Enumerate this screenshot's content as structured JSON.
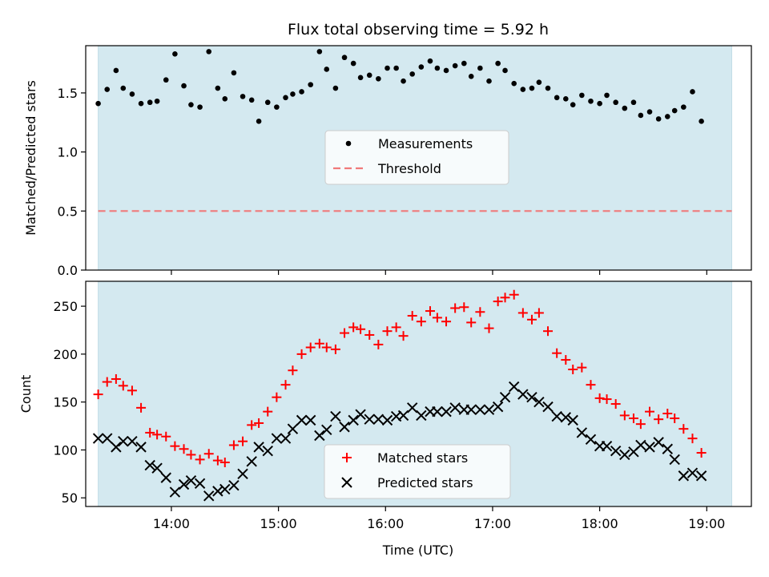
{
  "figure": {
    "title": "Flux total observing time = 5.92 h",
    "xlabel": "Time (UTC)"
  },
  "chart_data": [
    {
      "panel": "top",
      "type": "scatter",
      "ylabel": "Matched/Predicted stars",
      "xlim": [
        "13:12",
        "19:25"
      ],
      "ylim": [
        0,
        1.9
      ],
      "yticks": [
        0.0,
        0.5,
        1.0,
        1.5
      ],
      "ytick_labels": [
        "0.0",
        "0.5",
        "1.0",
        "1.5"
      ],
      "xticks": [
        "14:00",
        "15:00",
        "16:00",
        "17:00",
        "18:00",
        "19:00"
      ],
      "x_tick_labels_visible": false,
      "shaded_span": {
        "from": "13:19",
        "to": "19:14",
        "color": "#d4e9f0"
      },
      "grid": false,
      "legend": {
        "placement": "center",
        "entries": [
          "Measurements",
          "Threshold"
        ]
      },
      "threshold": {
        "name": "Threshold",
        "value": 0.5,
        "color": "#f07a7a",
        "style": "dashed"
      },
      "series": [
        {
          "name": "Measurements",
          "color": "#000000",
          "marker": "dot",
          "points": [
            [
              "13:19",
              1.41
            ],
            [
              "13:24",
              1.53
            ],
            [
              "13:29",
              1.69
            ],
            [
              "13:33",
              1.54
            ],
            [
              "13:38",
              1.49
            ],
            [
              "13:43",
              1.41
            ],
            [
              "13:48",
              1.42
            ],
            [
              "13:52",
              1.43
            ],
            [
              "13:57",
              1.61
            ],
            [
              "14:02",
              1.83
            ],
            [
              "14:07",
              1.56
            ],
            [
              "14:11",
              1.4
            ],
            [
              "14:16",
              1.38
            ],
            [
              "14:21",
              1.85
            ],
            [
              "14:26",
              1.54
            ],
            [
              "14:30",
              1.45
            ],
            [
              "14:35",
              1.67
            ],
            [
              "14:40",
              1.47
            ],
            [
              "14:45",
              1.44
            ],
            [
              "14:49",
              1.26
            ],
            [
              "14:54",
              1.42
            ],
            [
              "14:59",
              1.38
            ],
            [
              "15:04",
              1.46
            ],
            [
              "15:08",
              1.49
            ],
            [
              "15:13",
              1.51
            ],
            [
              "15:18",
              1.57
            ],
            [
              "15:23",
              1.85
            ],
            [
              "15:27",
              1.7
            ],
            [
              "15:32",
              1.54
            ],
            [
              "15:37",
              1.8
            ],
            [
              "15:42",
              1.75
            ],
            [
              "15:46",
              1.63
            ],
            [
              "15:51",
              1.65
            ],
            [
              "15:56",
              1.62
            ],
            [
              "16:01",
              1.71
            ],
            [
              "16:06",
              1.71
            ],
            [
              "16:10",
              1.6
            ],
            [
              "16:15",
              1.66
            ],
            [
              "16:20",
              1.72
            ],
            [
              "16:25",
              1.77
            ],
            [
              "16:29",
              1.71
            ],
            [
              "16:34",
              1.69
            ],
            [
              "16:39",
              1.73
            ],
            [
              "16:44",
              1.75
            ],
            [
              "16:48",
              1.64
            ],
            [
              "16:53",
              1.71
            ],
            [
              "16:58",
              1.6
            ],
            [
              "17:03",
              1.75
            ],
            [
              "17:07",
              1.69
            ],
            [
              "17:12",
              1.58
            ],
            [
              "17:17",
              1.53
            ],
            [
              "17:22",
              1.54
            ],
            [
              "17:26",
              1.59
            ],
            [
              "17:31",
              1.54
            ],
            [
              "17:36",
              1.46
            ],
            [
              "17:41",
              1.45
            ],
            [
              "17:45",
              1.4
            ],
            [
              "17:50",
              1.48
            ],
            [
              "17:55",
              1.43
            ],
            [
              "18:00",
              1.41
            ],
            [
              "18:04",
              1.48
            ],
            [
              "18:09",
              1.42
            ],
            [
              "18:14",
              1.37
            ],
            [
              "18:19",
              1.42
            ],
            [
              "18:23",
              1.31
            ],
            [
              "18:28",
              1.34
            ],
            [
              "18:33",
              1.28
            ],
            [
              "18:38",
              1.3
            ],
            [
              "18:42",
              1.35
            ],
            [
              "18:47",
              1.38
            ],
            [
              "18:52",
              1.51
            ],
            [
              "18:57",
              1.26
            ]
          ]
        }
      ]
    },
    {
      "panel": "bottom",
      "type": "scatter",
      "ylabel": "Count",
      "xlabel": "Time (UTC)",
      "xlim": [
        "13:12",
        "19:25"
      ],
      "ylim": [
        41,
        276
      ],
      "yticks": [
        50,
        100,
        150,
        200,
        250
      ],
      "ytick_labels": [
        "50",
        "100",
        "150",
        "200",
        "250"
      ],
      "xticks": [
        "14:00",
        "15:00",
        "16:00",
        "17:00",
        "18:00",
        "19:00"
      ],
      "xtick_labels": [
        "14:00",
        "15:00",
        "16:00",
        "17:00",
        "18:00",
        "19:00"
      ],
      "shaded_span": {
        "from": "13:19",
        "to": "19:14",
        "color": "#d4e9f0"
      },
      "grid": false,
      "legend": {
        "placement": "bottom-center",
        "entries": [
          "Matched stars",
          "Predicted stars"
        ]
      },
      "series": [
        {
          "name": "Matched stars",
          "color": "#ff0000",
          "marker": "plus",
          "points": [
            [
              "13:19",
              158
            ],
            [
              "13:24",
              171
            ],
            [
              "13:29",
              174
            ],
            [
              "13:33",
              167
            ],
            [
              "13:38",
              162
            ],
            [
              "13:43",
              144
            ],
            [
              "13:48",
              118
            ],
            [
              "13:52",
              116
            ],
            [
              "13:57",
              114
            ],
            [
              "14:02",
              104
            ],
            [
              "14:07",
              101
            ],
            [
              "14:11",
              95
            ],
            [
              "14:16",
              90
            ],
            [
              "14:21",
              96
            ],
            [
              "14:26",
              89
            ],
            [
              "14:30",
              87
            ],
            [
              "14:35",
              105
            ],
            [
              "14:40",
              109
            ],
            [
              "14:45",
              126
            ],
            [
              "14:49",
              128
            ],
            [
              "14:54",
              140
            ],
            [
              "14:59",
              155
            ],
            [
              "15:04",
              168
            ],
            [
              "15:08",
              183
            ],
            [
              "15:13",
              200
            ],
            [
              "15:18",
              207
            ],
            [
              "15:23",
              211
            ],
            [
              "15:27",
              207
            ],
            [
              "15:32",
              205
            ],
            [
              "15:37",
              222
            ],
            [
              "15:42",
              228
            ],
            [
              "15:46",
              226
            ],
            [
              "15:51",
              220
            ],
            [
              "15:56",
              210
            ],
            [
              "16:01",
              224
            ],
            [
              "16:06",
              228
            ],
            [
              "16:10",
              219
            ],
            [
              "16:15",
              240
            ],
            [
              "16:20",
              234
            ],
            [
              "16:25",
              245
            ],
            [
              "16:29",
              238
            ],
            [
              "16:34",
              234
            ],
            [
              "16:39",
              248
            ],
            [
              "16:44",
              249
            ],
            [
              "16:48",
              233
            ],
            [
              "16:53",
              244
            ],
            [
              "16:58",
              227
            ],
            [
              "17:03",
              255
            ],
            [
              "17:07",
              259
            ],
            [
              "17:12",
              262
            ],
            [
              "17:17",
              243
            ],
            [
              "17:22",
              236
            ],
            [
              "17:26",
              243
            ],
            [
              "17:31",
              224
            ],
            [
              "17:36",
              201
            ],
            [
              "17:41",
              194
            ],
            [
              "17:45",
              184
            ],
            [
              "17:50",
              186
            ],
            [
              "17:55",
              168
            ],
            [
              "18:00",
              154
            ],
            [
              "18:04",
              153
            ],
            [
              "18:09",
              148
            ],
            [
              "18:14",
              136
            ],
            [
              "18:19",
              133
            ],
            [
              "18:23",
              127
            ],
            [
              "18:28",
              140
            ],
            [
              "18:33",
              132
            ],
            [
              "18:38",
              138
            ],
            [
              "18:42",
              133
            ],
            [
              "18:47",
              122
            ],
            [
              "18:52",
              112
            ],
            [
              "18:57",
              97
            ]
          ]
        },
        {
          "name": "Predicted stars",
          "color": "#000000",
          "marker": "x",
          "points": [
            [
              "13:19",
              112
            ],
            [
              "13:24",
              112
            ],
            [
              "13:29",
              103
            ],
            [
              "13:33",
              109
            ],
            [
              "13:38",
              109
            ],
            [
              "13:43",
              103
            ],
            [
              "13:48",
              84
            ],
            [
              "13:52",
              81
            ],
            [
              "13:57",
              71
            ],
            [
              "14:02",
              56
            ],
            [
              "14:07",
              64
            ],
            [
              "14:11",
              68
            ],
            [
              "14:16",
              65
            ],
            [
              "14:21",
              52
            ],
            [
              "14:26",
              57
            ],
            [
              "14:30",
              59
            ],
            [
              "14:35",
              63
            ],
            [
              "14:40",
              75
            ],
            [
              "14:45",
              88
            ],
            [
              "14:49",
              103
            ],
            [
              "14:54",
              99
            ],
            [
              "14:59",
              112
            ],
            [
              "15:04",
              112
            ],
            [
              "15:08",
              122
            ],
            [
              "15:13",
              131
            ],
            [
              "15:18",
              131
            ],
            [
              "15:23",
              115
            ],
            [
              "15:27",
              121
            ],
            [
              "15:32",
              135
            ],
            [
              "15:37",
              124
            ],
            [
              "15:42",
              131
            ],
            [
              "15:46",
              137
            ],
            [
              "15:51",
              132
            ],
            [
              "15:56",
              132
            ],
            [
              "16:01",
              131
            ],
            [
              "16:06",
              135
            ],
            [
              "16:10",
              136
            ],
            [
              "16:15",
              144
            ],
            [
              "16:20",
              136
            ],
            [
              "16:25",
              140
            ],
            [
              "16:29",
              140
            ],
            [
              "16:34",
              140
            ],
            [
              "16:39",
              144
            ],
            [
              "16:44",
              142
            ],
            [
              "16:48",
              142
            ],
            [
              "16:53",
              142
            ],
            [
              "16:58",
              142
            ],
            [
              "17:03",
              145
            ],
            [
              "17:07",
              155
            ],
            [
              "17:12",
              166
            ],
            [
              "17:17",
              158
            ],
            [
              "17:22",
              155
            ],
            [
              "17:26",
              150
            ],
            [
              "17:31",
              145
            ],
            [
              "17:36",
              135
            ],
            [
              "17:41",
              134
            ],
            [
              "17:45",
              131
            ],
            [
              "17:50",
              118
            ],
            [
              "17:55",
              111
            ],
            [
              "18:00",
              104
            ],
            [
              "18:04",
              104
            ],
            [
              "18:09",
              99
            ],
            [
              "18:14",
              95
            ],
            [
              "18:19",
              98
            ],
            [
              "18:23",
              105
            ],
            [
              "18:28",
              103
            ],
            [
              "18:33",
              108
            ],
            [
              "18:38",
              101
            ],
            [
              "18:42",
              90
            ],
            [
              "18:47",
              73
            ],
            [
              "18:52",
              76
            ],
            [
              "18:57",
              73
            ]
          ]
        }
      ]
    }
  ]
}
